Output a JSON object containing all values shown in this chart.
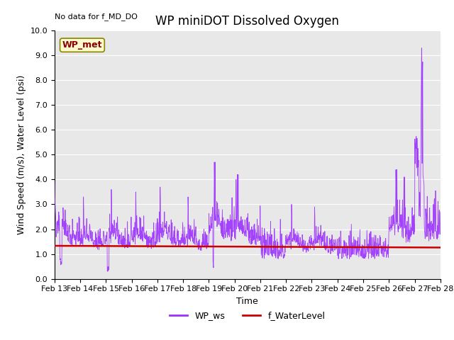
{
  "title": "WP miniDOT Dissolved Oxygen",
  "no_data_text": "No data for f_MD_DO",
  "xlabel": "Time",
  "ylabel": "Wind Speed (m/s), Water Level (psi)",
  "ylim": [
    0.0,
    10.0
  ],
  "yticks": [
    0.0,
    1.0,
    2.0,
    3.0,
    4.0,
    5.0,
    6.0,
    7.0,
    8.0,
    9.0,
    10.0
  ],
  "xtick_labels": [
    "Feb 13",
    "Feb 14",
    "Feb 15",
    "Feb 16",
    "Feb 17",
    "Feb 18",
    "Feb 19",
    "Feb 20",
    "Feb 21",
    "Feb 22",
    "Feb 23",
    "Feb 24",
    "Feb 25",
    "Feb 26",
    "Feb 27",
    "Feb 28"
  ],
  "legend_label_ws": "WP_ws",
  "legend_label_wl": "f_WaterLevel",
  "legend_source_label": "WP_met",
  "ws_color": "#9B30FF",
  "wl_color": "#CC0000",
  "background_color": "#E8E8E8",
  "fig_background": "#FFFFFF",
  "title_fontsize": 12,
  "axis_label_fontsize": 9,
  "tick_fontsize": 8,
  "legend_fontsize": 9,
  "no_data_fontsize": 8
}
